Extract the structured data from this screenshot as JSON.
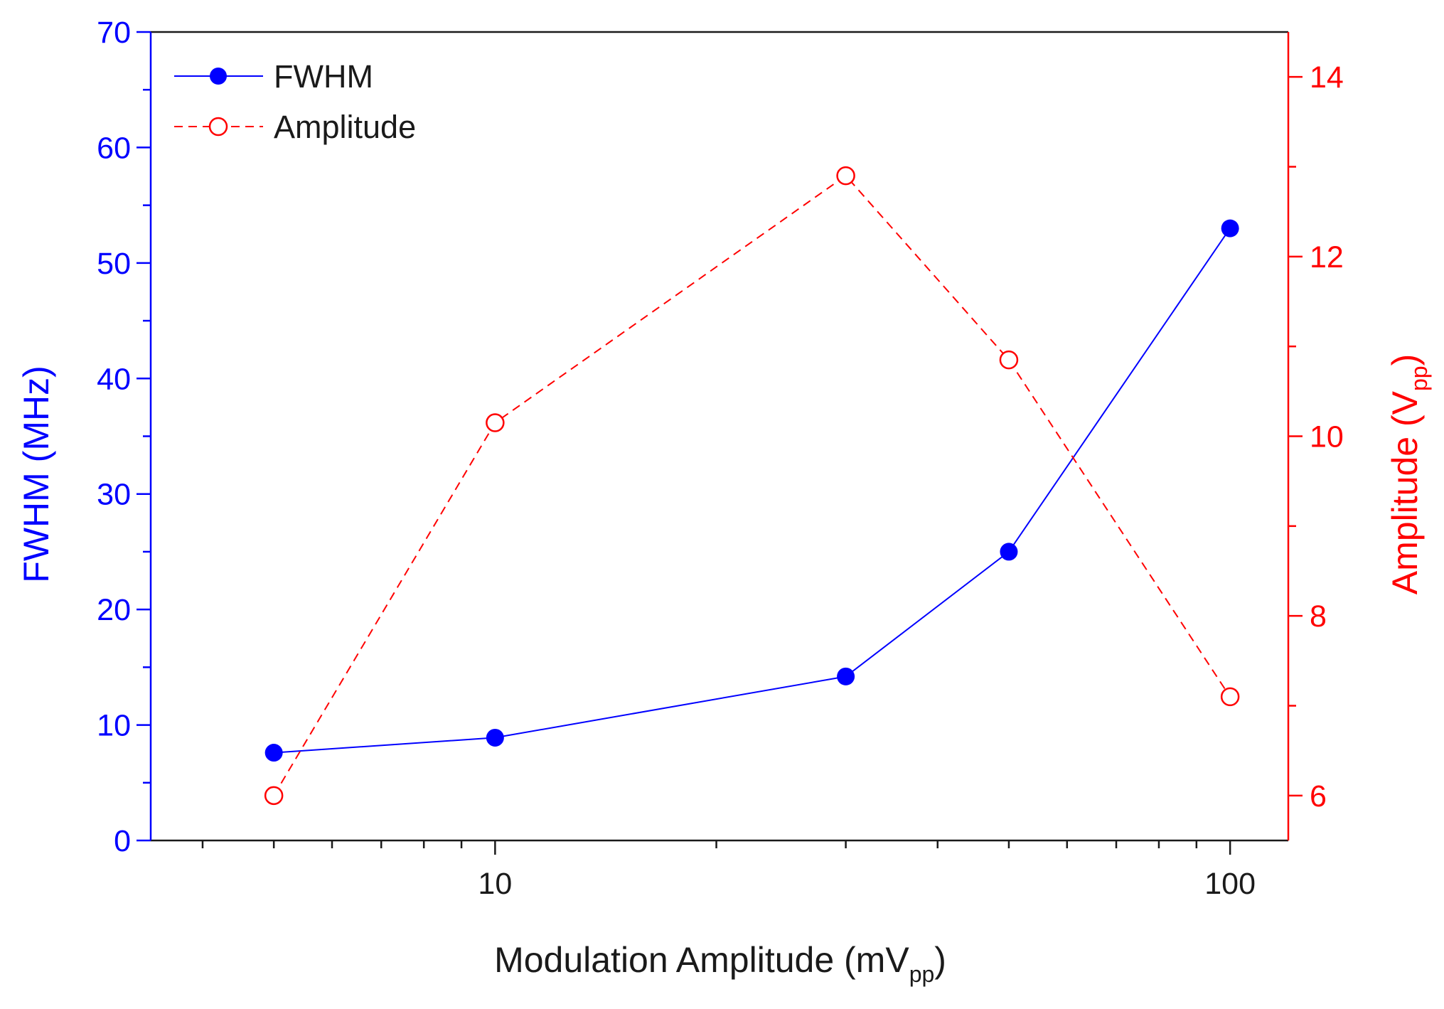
{
  "chart_data": {
    "type": "line",
    "x_scale": "log",
    "xlim": [
      3.4,
      120
    ],
    "x_ticks": [
      10,
      100
    ],
    "x_tick_labels": [
      "10",
      "100"
    ],
    "xlabel_main": "Modulation Amplitude (mV",
    "xlabel_sub": "pp",
    "xlabel_close": ")",
    "y_left": {
      "label": "FWHM (MHz)",
      "lim": [
        0,
        70
      ],
      "ticks": [
        0,
        10,
        20,
        30,
        40,
        50,
        60,
        70
      ],
      "color": "#0000ff"
    },
    "y_right": {
      "label_main": "Amplitude (V",
      "label_sub": "pp",
      "label_close": ")",
      "lim": [
        5.5,
        14.5
      ],
      "ticks": [
        6,
        8,
        10,
        12,
        14
      ],
      "color": "#ff0000"
    },
    "series": [
      {
        "name": "FWHM",
        "axis": "left",
        "x": [
          5,
          10,
          30,
          50,
          100
        ],
        "y": [
          7.6,
          8.9,
          14.2,
          25.0,
          53.0
        ],
        "color": "#0000ff",
        "line": "solid",
        "marker": "filled-circle"
      },
      {
        "name": "Amplitude",
        "axis": "right",
        "x": [
          5,
          10,
          30,
          50,
          100
        ],
        "y": [
          6.0,
          10.15,
          12.9,
          10.85,
          7.1
        ],
        "color": "#ff0000",
        "line": "dashed",
        "marker": "open-circle"
      }
    ],
    "legend_position": "top-left"
  }
}
